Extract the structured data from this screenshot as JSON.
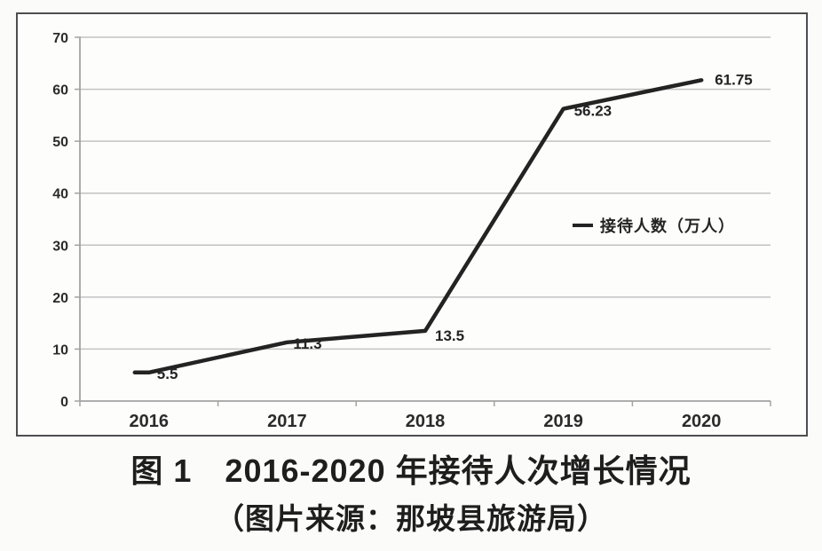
{
  "figure": {
    "caption_title": "图 1　2016-2020 年接待人次增长情况",
    "caption_source": "（图片来源：那坡县旅游局）"
  },
  "chart_data": {
    "type": "line",
    "title": "",
    "xlabel": "",
    "ylabel": "",
    "categories": [
      "2016",
      "2017",
      "2018",
      "2019",
      "2020"
    ],
    "series": [
      {
        "name": "接待人数（万人）",
        "values": [
          5.5,
          11.3,
          13.5,
          56.23,
          61.75
        ]
      }
    ],
    "data_labels": [
      "5.5",
      "11.3",
      "13.5",
      "56.23",
      "61.75"
    ],
    "ylim": [
      0,
      70
    ],
    "yticks": [
      0,
      10,
      20,
      30,
      40,
      50,
      60,
      70
    ],
    "grid": true,
    "legend": {
      "label": "接待人数（万人）",
      "position": "middle-right"
    },
    "colors": {
      "line": "#232323",
      "grid": "#c3c3c3",
      "axis": "#a3a3a3",
      "text": "#2b2b2b",
      "frame": "#4e4e50"
    }
  }
}
